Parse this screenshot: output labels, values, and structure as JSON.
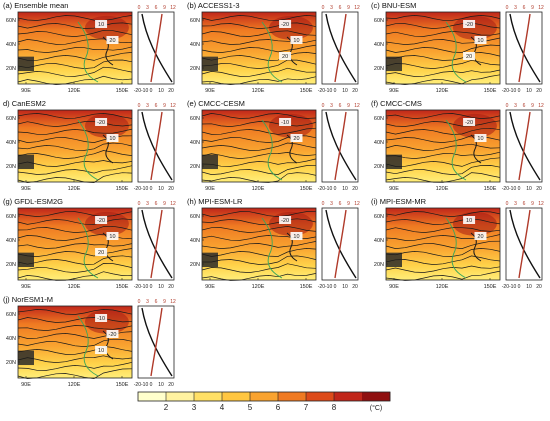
{
  "chart_data": {
    "type": "heatmap",
    "panels": [
      {
        "label": "(a) Ensemble mean",
        "contour_labels": [
          "10",
          "20"
        ]
      },
      {
        "label": "(b) ACCESS1-3",
        "contour_labels": [
          "-20",
          "10",
          "20"
        ]
      },
      {
        "label": "(c) BNU-ESM",
        "contour_labels": [
          "-20",
          "10",
          "20"
        ]
      },
      {
        "label": "d) CanESM2",
        "contour_labels": [
          "-20",
          "10"
        ]
      },
      {
        "label": "(e) CMCC-CESM",
        "contour_labels": [
          "-10",
          "20"
        ]
      },
      {
        "label": "(f) CMCC-CMS",
        "contour_labels": [
          "-20",
          "10"
        ]
      },
      {
        "label": "(g) GFDL-ESM2G",
        "contour_labels": [
          "-20",
          "10",
          "20"
        ]
      },
      {
        "label": "(h) MPI-ESM-LR",
        "contour_labels": [
          "-20",
          "10"
        ]
      },
      {
        "label": "(i) MPI-ESM-MR",
        "contour_labels": [
          "10",
          "20"
        ]
      },
      {
        "label": "(j) NorESM1-M",
        "contour_labels": [
          "-10",
          "-20",
          "10"
        ]
      }
    ],
    "map_x_ticks": [
      "90E",
      "120E",
      "150E"
    ],
    "map_y_ticks": [
      "60N",
      "40N",
      "20N"
    ],
    "profile_top_ticks": [
      "0",
      "3",
      "6",
      "9",
      "12"
    ],
    "profile_bottom_ticks": [
      "-20-10",
      "0",
      "10",
      "20"
    ],
    "colorbar": {
      "ticks": [
        "2",
        "3",
        "4",
        "5",
        "6",
        "7",
        "8"
      ],
      "unit": "(°C)",
      "colors": [
        "#ffffcc",
        "#fff2a0",
        "#ffe066",
        "#ffc640",
        "#f9a330",
        "#ef7a22",
        "#dd4b1a",
        "#c0261a",
        "#8f1010"
      ]
    }
  }
}
